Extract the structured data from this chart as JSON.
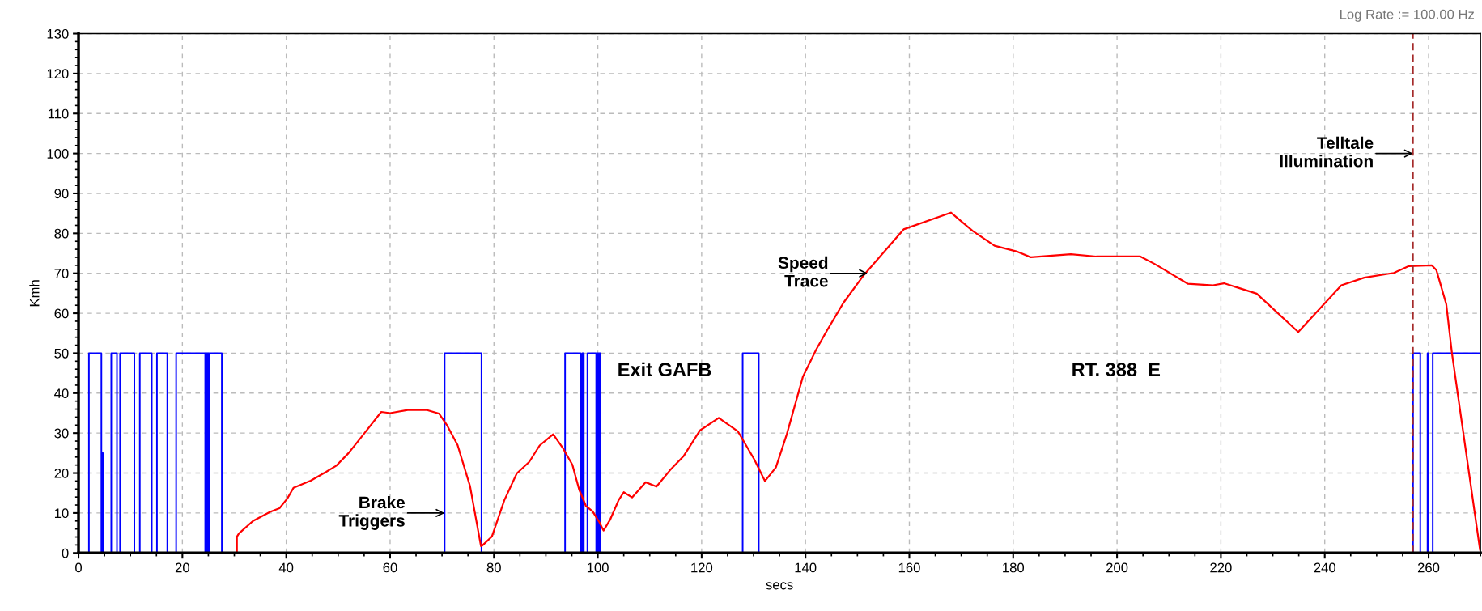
{
  "chart_data": {
    "type": "line",
    "xlabel": "secs",
    "ylabel": "Kmh",
    "xlim": [
      0,
      270
    ],
    "xticks": [
      0,
      20,
      40,
      60,
      80,
      100,
      120,
      140,
      160,
      180,
      200,
      220,
      240,
      260
    ],
    "ylim": [
      0,
      130
    ],
    "yticks": [
      0,
      10,
      20,
      30,
      40,
      50,
      60,
      70,
      80,
      90,
      100,
      110,
      120,
      130
    ],
    "grid": true,
    "series": [
      {
        "type": "step",
        "color": "#0000ff",
        "x": [
          0,
          2.0,
          4.4,
          4.6,
          4.7,
          6.3,
          7.4,
          8.0,
          10.75,
          11.8,
          14.1,
          15.1,
          17.1,
          18.8,
          24.4,
          24.5,
          24.7,
          24.8,
          25.0,
          25.1,
          27.6,
          70.5,
          77.6,
          93.7,
          96.7,
          97.0,
          97.3,
          98.0,
          99.7,
          99.9,
          100.2,
          100.3,
          100.5,
          127.9,
          131.0,
          257.0,
          258.4,
          259.8,
          260.0,
          260.8,
          270
        ],
        "values": [
          0,
          50,
          0,
          25,
          0,
          50,
          0,
          50,
          0,
          50,
          0,
          50,
          0,
          50,
          0,
          50,
          0,
          50,
          0,
          50,
          0,
          50,
          0,
          50,
          0,
          50,
          0,
          50,
          0,
          50,
          0,
          50,
          0,
          50,
          0,
          50,
          0,
          50,
          0,
          50,
          50
        ]
      },
      {
        "color": "#ff0000",
        "x": [
          30.5,
          30.5,
          30.9,
          33.6,
          36.9,
          38.7,
          40.2,
          41.4,
          44.7,
          47.7,
          49.6,
          52.0,
          54.4,
          58.3,
          60.0,
          63.4,
          67.0,
          69.4,
          70.9,
          73.0,
          75.4,
          77.5,
          77.8,
          79.6,
          82.0,
          84.4,
          86.8,
          88.8,
          91.4,
          93.3,
          95.1,
          96.4,
          97.7,
          99.0,
          100.3,
          101.1,
          102.4,
          104.0,
          105.0,
          106.6,
          109.2,
          111.3,
          113.9,
          116.5,
          119.7,
          123.3,
          127.0,
          130.1,
          132.2,
          134.3,
          136.4,
          139.5,
          142.1,
          144.2,
          147.3,
          151.2,
          158.9,
          168.0,
          172.2,
          176.4,
          180.6,
          183.4,
          191.1,
          196.0,
          204.5,
          207.3,
          213.6,
          218.5,
          220.6,
          226.9,
          234.9,
          243.2,
          247.6,
          253.3,
          256.2,
          260.6,
          261.5,
          263.4,
          264.5,
          269.9
        ],
        "values": [
          0,
          4.1,
          4.9,
          8.0,
          10.3,
          11.2,
          13.6,
          16.3,
          18.1,
          20.3,
          21.8,
          25.0,
          28.9,
          35.3,
          35.0,
          35.8,
          35.8,
          34.9,
          32.1,
          27.0,
          16.7,
          1.7,
          1.9,
          4.1,
          13.2,
          19.9,
          22.8,
          26.9,
          29.7,
          26.2,
          22.1,
          15.9,
          11.8,
          10.4,
          7.7,
          5.6,
          8.4,
          13.2,
          15.2,
          13.9,
          17.7,
          16.6,
          20.7,
          24.2,
          30.7,
          33.8,
          30.4,
          23.5,
          18.0,
          21.4,
          29.7,
          44.1,
          51.0,
          55.8,
          62.6,
          69.5,
          81.0,
          85.2,
          80.6,
          76.9,
          75.5,
          74.0,
          74.8,
          74.2,
          74.2,
          72.3,
          67.4,
          67.0,
          67.5,
          64.9,
          55.3,
          67.0,
          68.9,
          70.1,
          71.8,
          72.0,
          70.8,
          62.3,
          50.0,
          0.8
        ]
      }
    ],
    "ref_lines": [
      {
        "axis": "x",
        "value": 257,
        "color": "#a52a2a",
        "line_style": "dashed"
      }
    ],
    "annotations": [
      {
        "text": "Brake\nTriggers",
        "x": 70.5,
        "y": 10
      },
      {
        "text": "Speed\nTrace",
        "x": 152,
        "y": 70
      },
      {
        "text": "Telltale\nIllumination",
        "x": 257,
        "y": 100
      },
      "Exit GAFB",
      "RT. 388  E",
      "Log Rate := 100.00 Hz"
    ]
  }
}
